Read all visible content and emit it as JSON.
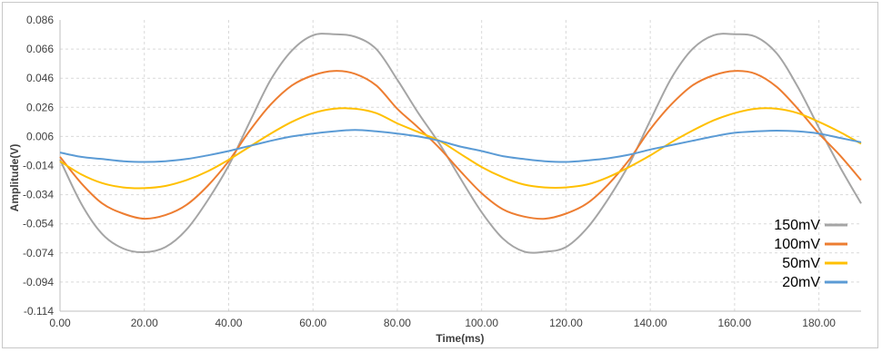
{
  "chart_data": {
    "type": "line",
    "title": "",
    "xlabel": "Time(ms)",
    "ylabel": "Amplitude(V)",
    "xlim": [
      0,
      190
    ],
    "ylim": [
      -0.114,
      0.086
    ],
    "x_ticks": [
      "0.00",
      "20.00",
      "40.00",
      "60.00",
      "80.00",
      "100.00",
      "120.00",
      "140.00",
      "160.00",
      "180.00"
    ],
    "y_ticks": [
      "0.086",
      "0.066",
      "0.046",
      "0.026",
      "0.006",
      "-0.014",
      "-0.034",
      "-0.054",
      "-0.074",
      "-0.094",
      "-0.114"
    ],
    "grid": true,
    "legend_position": "bottom-right",
    "series": [
      {
        "name": "150mV",
        "color": "#a5a5a5",
        "x": [
          0,
          5,
          10,
          15,
          20,
          25,
          30,
          35,
          40,
          45,
          50,
          55,
          60,
          65,
          70,
          75,
          80,
          85,
          90,
          95,
          100,
          105,
          110,
          115,
          120,
          125,
          130,
          135,
          140,
          145,
          150,
          155,
          160,
          165,
          170,
          175,
          180,
          185,
          190
        ],
        "y": [
          -0.01,
          -0.04,
          -0.061,
          -0.071,
          -0.0735,
          -0.07,
          -0.058,
          -0.038,
          -0.014,
          0.016,
          0.045,
          0.065,
          0.0755,
          0.0762,
          0.0745,
          0.066,
          0.045,
          0.022,
          0.001,
          -0.023,
          -0.046,
          -0.064,
          -0.073,
          -0.0732,
          -0.07,
          -0.057,
          -0.037,
          -0.013,
          0.017,
          0.046,
          0.066,
          0.0755,
          0.0762,
          0.0745,
          0.063,
          0.04,
          0.012,
          -0.015,
          -0.04
        ]
      },
      {
        "name": "100mV",
        "color": "#ed7d31",
        "x": [
          0,
          5,
          10,
          15,
          20,
          25,
          30,
          35,
          40,
          45,
          50,
          55,
          60,
          65,
          70,
          75,
          80,
          85,
          90,
          95,
          100,
          105,
          110,
          115,
          120,
          125,
          130,
          135,
          140,
          145,
          150,
          155,
          160,
          165,
          170,
          175,
          180,
          185,
          190
        ],
        "y": [
          -0.008,
          -0.026,
          -0.04,
          -0.047,
          -0.0505,
          -0.048,
          -0.041,
          -0.028,
          -0.011,
          0.01,
          0.028,
          0.041,
          0.048,
          0.051,
          0.049,
          0.041,
          0.025,
          0.012,
          -0.002,
          -0.018,
          -0.033,
          -0.044,
          -0.049,
          -0.0505,
          -0.047,
          -0.04,
          -0.027,
          -0.01,
          0.011,
          0.028,
          0.041,
          0.048,
          0.051,
          0.049,
          0.04,
          0.025,
          0.008,
          -0.007,
          -0.024
        ]
      },
      {
        "name": "50mV",
        "color": "#ffc000",
        "x": [
          0,
          5,
          10,
          15,
          20,
          25,
          30,
          35,
          40,
          45,
          50,
          55,
          60,
          65,
          70,
          75,
          80,
          85,
          90,
          95,
          100,
          105,
          110,
          115,
          120,
          125,
          130,
          135,
          140,
          145,
          150,
          155,
          160,
          165,
          170,
          175,
          180,
          185,
          190
        ],
        "y": [
          -0.011,
          -0.02,
          -0.026,
          -0.029,
          -0.0295,
          -0.028,
          -0.024,
          -0.018,
          -0.01,
          -0.001,
          0.008,
          0.016,
          0.022,
          0.025,
          0.025,
          0.022,
          0.015,
          0.009,
          0.003,
          -0.006,
          -0.015,
          -0.022,
          -0.027,
          -0.029,
          -0.029,
          -0.027,
          -0.022,
          -0.015,
          -0.007,
          0.002,
          0.01,
          0.017,
          0.022,
          0.025,
          0.025,
          0.022,
          0.016,
          0.009,
          0.001
        ]
      },
      {
        "name": "20mV",
        "color": "#5b9bd5",
        "x": [
          0,
          5,
          10,
          15,
          20,
          25,
          30,
          35,
          40,
          45,
          50,
          55,
          60,
          65,
          70,
          75,
          80,
          85,
          90,
          95,
          100,
          105,
          110,
          115,
          120,
          125,
          130,
          135,
          140,
          145,
          150,
          155,
          160,
          165,
          170,
          175,
          180,
          185,
          190
        ],
        "y": [
          -0.005,
          -0.008,
          -0.0095,
          -0.011,
          -0.0115,
          -0.011,
          -0.0095,
          -0.007,
          -0.004,
          -0.0005,
          0.003,
          0.006,
          0.008,
          0.0095,
          0.0105,
          0.0095,
          0.008,
          0.006,
          0.003,
          -0.001,
          -0.004,
          -0.0075,
          -0.0095,
          -0.011,
          -0.0115,
          -0.0105,
          -0.009,
          -0.0065,
          -0.003,
          0.0,
          0.003,
          0.006,
          0.0085,
          0.0095,
          0.01,
          0.0095,
          0.008,
          0.005,
          0.002
        ]
      }
    ]
  }
}
